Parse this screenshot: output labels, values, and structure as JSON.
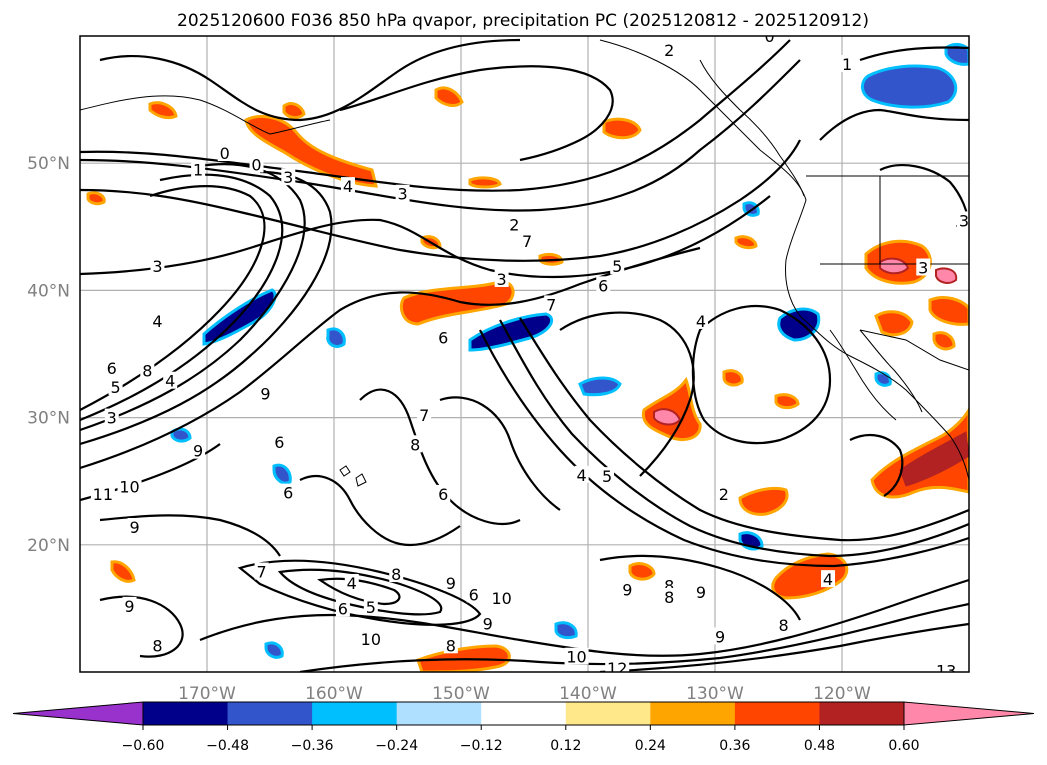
{
  "chart_data": {
    "type": "heatmap",
    "title": "2025120600 F036 850 hPa qvapor, precipitation PC (2025120812 - 2025120912)",
    "lon_range": [
      -180,
      -110
    ],
    "lat_range": [
      10,
      60
    ],
    "x_ticks": [
      {
        "value": -170,
        "label": "170°W"
      },
      {
        "value": -160,
        "label": "160°W"
      },
      {
        "value": -150,
        "label": "150°W"
      },
      {
        "value": -140,
        "label": "140°W"
      },
      {
        "value": -130,
        "label": "130°W"
      },
      {
        "value": -120,
        "label": "120°W"
      }
    ],
    "y_ticks": [
      {
        "value": 20,
        "label": "20°N"
      },
      {
        "value": 30,
        "label": "30°N"
      },
      {
        "value": 40,
        "label": "40°N"
      },
      {
        "value": 50,
        "label": "50°N"
      }
    ],
    "grid": true,
    "colorbar": {
      "extend": "both",
      "under_color": "#9932cc",
      "over_color": "#ff88aa",
      "colors": [
        "#00008b",
        "#3355cc",
        "#00bfff",
        "#b0e0ff",
        "#ffffff",
        "#ffe88a",
        "#ffa500",
        "#ff4500",
        "#b22222"
      ],
      "tick_labels": [
        "−0.60",
        "−0.48",
        "−0.36",
        "−0.24",
        "−0.12",
        "0.12",
        "0.24",
        "0.36",
        "0.48",
        "0.60"
      ]
    },
    "contour_labels": [
      {
        "text": "0",
        "lon": -168.6,
        "lat": 50.8
      },
      {
        "text": "1",
        "lon": -170.7,
        "lat": 49.5
      },
      {
        "text": "0",
        "lon": -166.1,
        "lat": 49.9
      },
      {
        "text": "3",
        "lon": -163.6,
        "lat": 48.9
      },
      {
        "text": "4",
        "lon": -158.9,
        "lat": 48.2
      },
      {
        "text": "3",
        "lon": -154.6,
        "lat": 47.6
      },
      {
        "text": "2",
        "lon": -145.8,
        "lat": 45.2
      },
      {
        "text": "7",
        "lon": -144.8,
        "lat": 43.9
      },
      {
        "text": "3",
        "lon": -173.9,
        "lat": 41.9
      },
      {
        "text": "3",
        "lon": -146.8,
        "lat": 40.9
      },
      {
        "text": "5",
        "lon": -137.7,
        "lat": 41.9
      },
      {
        "text": "6",
        "lon": -138.8,
        "lat": 40.4
      },
      {
        "text": "7",
        "lon": -142.9,
        "lat": 38.9
      },
      {
        "text": "4",
        "lon": -173.9,
        "lat": 37.6
      },
      {
        "text": "6",
        "lon": -177.5,
        "lat": 33.9
      },
      {
        "text": "8",
        "lon": -174.7,
        "lat": 33.7
      },
      {
        "text": "4",
        "lon": -172.9,
        "lat": 32.9
      },
      {
        "text": "5",
        "lon": -177.2,
        "lat": 32.4
      },
      {
        "text": "3",
        "lon": -177.5,
        "lat": 30.0
      },
      {
        "text": "9",
        "lon": -165.4,
        "lat": 31.9
      },
      {
        "text": "6",
        "lon": -151.4,
        "lat": 36.3
      },
      {
        "text": "4",
        "lon": -131.1,
        "lat": 37.6
      },
      {
        "text": "9",
        "lon": -170.7,
        "lat": 27.4
      },
      {
        "text": "6",
        "lon": -164.3,
        "lat": 28.1
      },
      {
        "text": "7",
        "lon": -152.9,
        "lat": 30.2
      },
      {
        "text": "8",
        "lon": -153.6,
        "lat": 27.9
      },
      {
        "text": "4",
        "lon": -140.5,
        "lat": 25.5
      },
      {
        "text": "5",
        "lon": -138.5,
        "lat": 25.4
      },
      {
        "text": "6",
        "lon": -151.4,
        "lat": 24.0
      },
      {
        "text": "6",
        "lon": -163.6,
        "lat": 24.1
      },
      {
        "text": "10",
        "lon": -176.1,
        "lat": 24.6
      },
      {
        "text": "11",
        "lon": -178.2,
        "lat": 24.0
      },
      {
        "text": "2",
        "lon": -129.3,
        "lat": 24.0
      },
      {
        "text": "9",
        "lon": -175.7,
        "lat": 21.4
      },
      {
        "text": "7",
        "lon": -165.7,
        "lat": 17.9
      },
      {
        "text": "4",
        "lon": -158.6,
        "lat": 17.0
      },
      {
        "text": "8",
        "lon": -155.1,
        "lat": 17.7
      },
      {
        "text": "9",
        "lon": -150.8,
        "lat": 17.0
      },
      {
        "text": "6",
        "lon": -149.0,
        "lat": 16.1
      },
      {
        "text": "5",
        "lon": -157.1,
        "lat": 15.1
      },
      {
        "text": "6",
        "lon": -159.3,
        "lat": 15.0
      },
      {
        "text": "10",
        "lon": -146.8,
        "lat": 15.8
      },
      {
        "text": "9",
        "lon": -147.9,
        "lat": 13.8
      },
      {
        "text": "9",
        "lon": -176.1,
        "lat": 15.2
      },
      {
        "text": "9",
        "lon": -136.9,
        "lat": 16.5
      },
      {
        "text": "8",
        "lon": -133.6,
        "lat": 16.8
      },
      {
        "text": "9",
        "lon": -131.1,
        "lat": 16.3
      },
      {
        "text": "8",
        "lon": -133.6,
        "lat": 15.9
      },
      {
        "text": "8",
        "lon": -124.6,
        "lat": 13.7
      },
      {
        "text": "9",
        "lon": -129.6,
        "lat": 12.8
      },
      {
        "text": "4",
        "lon": -121.1,
        "lat": 17.3
      },
      {
        "text": "10",
        "lon": -157.1,
        "lat": 12.6
      },
      {
        "text": "8",
        "lon": -173.9,
        "lat": 12.1
      },
      {
        "text": "8",
        "lon": -150.8,
        "lat": 12.1
      },
      {
        "text": "10",
        "lon": -140.9,
        "lat": 11.2
      },
      {
        "text": "12",
        "lon": -137.7,
        "lat": 10.3
      },
      {
        "text": "13",
        "lon": -111.8,
        "lat": 10.1
      },
      {
        "text": "2",
        "lon": -133.6,
        "lat": 58.9
      },
      {
        "text": "0",
        "lon": -125.7,
        "lat": 60.0
      },
      {
        "text": "1",
        "lon": -119.6,
        "lat": 57.8
      },
      {
        "text": "3",
        "lon": -113.6,
        "lat": 41.8
      },
      {
        "text": "3",
        "lon": -110.4,
        "lat": 45.5
      }
    ]
  }
}
